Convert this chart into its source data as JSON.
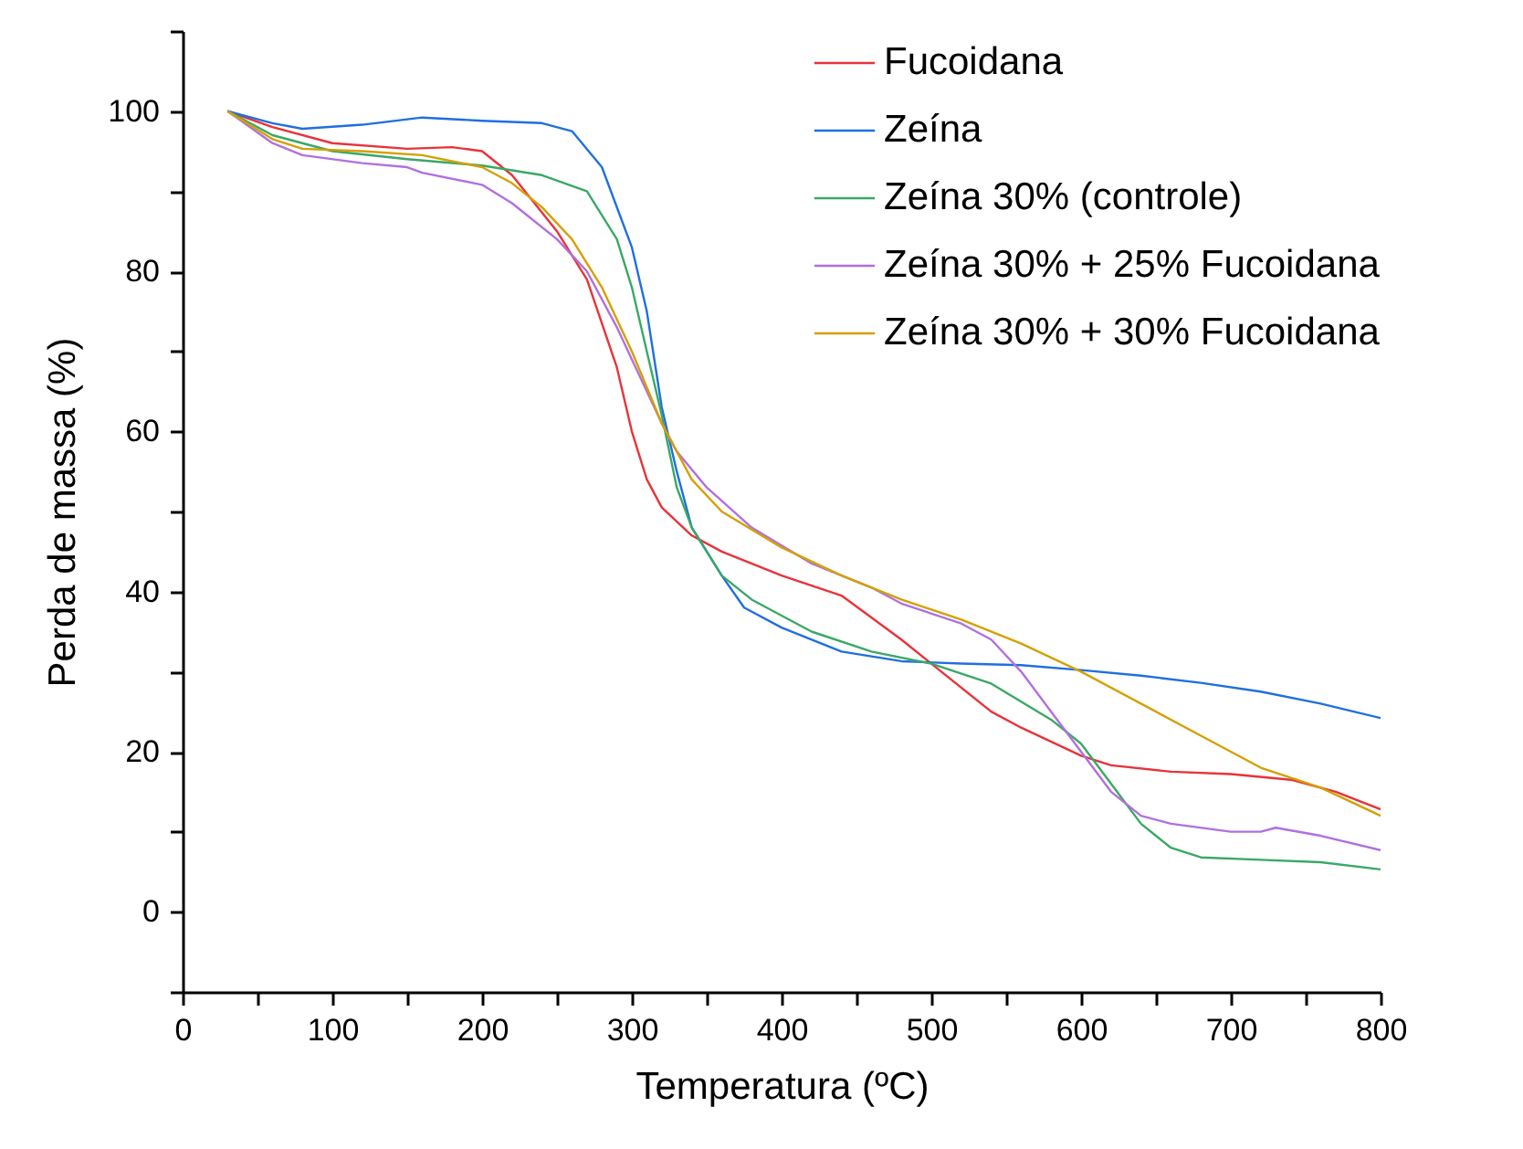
{
  "chart_data": {
    "type": "line",
    "xlabel": "Temperatura (ºC)",
    "ylabel": "Perda de massa (%)",
    "xlim": [
      0,
      800
    ],
    "ylim": [
      -10,
      110
    ],
    "xticks": [
      0,
      {
        "value": 50,
        "label": null
      },
      100,
      {
        "value": 150,
        "label": null
      },
      200,
      {
        "value": 250,
        "label": null
      },
      300,
      {
        "value": 350,
        "label": null
      },
      400,
      {
        "value": 450,
        "label": null
      },
      500,
      {
        "value": 550,
        "label": null
      },
      600,
      {
        "value": 650,
        "label": null
      },
      700,
      {
        "value": 750,
        "label": null
      },
      800
    ],
    "yticks": [
      {
        "value": -10,
        "label": null
      },
      0,
      {
        "value": 10,
        "label": null
      },
      20,
      {
        "value": 30,
        "label": null
      },
      40,
      {
        "value": 50,
        "label": null
      },
      60,
      {
        "value": 70,
        "label": null
      },
      80,
      {
        "value": 90,
        "label": null
      },
      100,
      {
        "value": 110,
        "label": null
      }
    ],
    "grid": false,
    "legend": "top right",
    "marker": "none",
    "line_style": "solid",
    "series": [
      {
        "name": "Fucoidana",
        "color": "#e8333a",
        "x": [
          30,
          60,
          100,
          150,
          180,
          200,
          220,
          250,
          270,
          290,
          300,
          310,
          320,
          340,
          360,
          400,
          440,
          480,
          500,
          540,
          560,
          600,
          620,
          660,
          700,
          740,
          770,
          800
        ],
        "values": [
          100,
          98,
          96,
          95.3,
          95.5,
          95,
          92,
          85,
          79,
          68,
          60,
          54,
          50.5,
          47,
          45,
          42,
          39.5,
          34,
          31,
          25,
          23,
          19.5,
          18.3,
          17.5,
          17.2,
          16.5,
          15,
          12.8
        ]
      },
      {
        "name": "Zeína",
        "color": "#1f6fe0",
        "x": [
          30,
          60,
          80,
          120,
          160,
          200,
          240,
          260,
          280,
          300,
          310,
          320,
          330,
          340,
          360,
          375,
          400,
          440,
          480,
          520,
          560,
          600,
          640,
          680,
          720,
          760,
          800
        ],
        "values": [
          100,
          98.5,
          97.8,
          98.3,
          99.2,
          98.8,
          98.5,
          97.5,
          93,
          83,
          75,
          63,
          55,
          48,
          42,
          38,
          35.5,
          32.5,
          31.3,
          31,
          30.8,
          30.2,
          29.5,
          28.6,
          27.5,
          26,
          24.2
        ]
      },
      {
        "name": "Zeína 30% (controle)",
        "color": "#3aa866",
        "x": [
          30,
          60,
          100,
          150,
          200,
          240,
          270,
          290,
          300,
          310,
          320,
          330,
          340,
          360,
          380,
          420,
          460,
          500,
          540,
          580,
          600,
          620,
          640,
          660,
          680,
          720,
          760,
          800
        ],
        "values": [
          100,
          97,
          95,
          94,
          93.2,
          92,
          90,
          84,
          78,
          70,
          62,
          53,
          48,
          42,
          39,
          35,
          32.5,
          31,
          28.5,
          24,
          21,
          16,
          11,
          8,
          6.8,
          6.5,
          6.2,
          5.3
        ]
      },
      {
        "name": "Zeína 30% + 25% Fucoidana",
        "color": "#b070e0",
        "x": [
          30,
          60,
          80,
          120,
          150,
          160,
          200,
          220,
          250,
          270,
          290,
          300,
          320,
          330,
          350,
          380,
          420,
          460,
          480,
          520,
          540,
          560,
          580,
          600,
          620,
          640,
          660,
          700,
          720,
          730,
          760,
          800
        ],
        "values": [
          100,
          96,
          94.5,
          93.5,
          93,
          92.3,
          90.8,
          88.5,
          84,
          80,
          73,
          69,
          61,
          57.5,
          53,
          48,
          43.5,
          40.5,
          38.5,
          36,
          34,
          30,
          25,
          20,
          15,
          12,
          11,
          10,
          10,
          10.5,
          9.5,
          7.7
        ]
      },
      {
        "name": "Zeína 30% + 30% Fucoidana",
        "color": "#d4a000",
        "x": [
          30,
          60,
          80,
          120,
          160,
          200,
          220,
          240,
          260,
          280,
          300,
          320,
          340,
          360,
          400,
          440,
          480,
          520,
          560,
          600,
          640,
          680,
          720,
          760,
          800
        ],
        "values": [
          100,
          96.5,
          95.3,
          95,
          94.5,
          93,
          91,
          88,
          84,
          78,
          70,
          61,
          54,
          50,
          45.5,
          42,
          39,
          36.5,
          33.5,
          30,
          26,
          22,
          18,
          15.5,
          12
        ]
      }
    ]
  }
}
